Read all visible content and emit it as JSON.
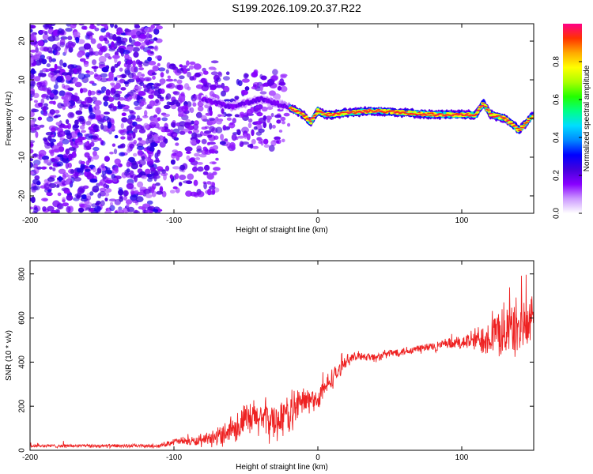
{
  "title": "S199.2026.109.20.37.R22",
  "colors": {
    "snr_line": "#ee2222",
    "colormap": [
      "#ffffff",
      "#cc99ff",
      "#8800ff",
      "#4400dd",
      "#0000ff",
      "#0088ff",
      "#00ddff",
      "#00ff88",
      "#22ff00",
      "#aaff00",
      "#ffff00",
      "#ffaa00",
      "#ff3300",
      "#ff0088"
    ]
  },
  "chart_data": [
    {
      "type": "heatmap",
      "title": "",
      "xlabel": "Height of straight line (km)",
      "ylabel": "Frequency (Hz)",
      "xlim": [
        -200,
        150
      ],
      "ylim": [
        -24.5,
        24.5
      ],
      "xticks": [
        -200,
        -100,
        0,
        100
      ],
      "xtick_labels": [
        "-200",
        "-100",
        "0",
        "100"
      ],
      "yticks": [
        -20,
        -10,
        0,
        10,
        20
      ],
      "ytick_labels": [
        "-20",
        "-10",
        "0",
        "10",
        "20"
      ],
      "colorbar": {
        "label": "Normalized spectral amplitude",
        "range": [
          0,
          1
        ],
        "ticks": [
          0.0,
          0.2,
          0.4,
          0.6,
          0.8
        ],
        "tick_labels": [
          "0.0",
          "0.2",
          "0.4",
          "0.6",
          "0.8"
        ]
      },
      "ridge": {
        "x": [
          -80,
          -60,
          -40,
          -30,
          -20,
          -10,
          -5,
          0,
          5,
          10,
          20,
          40,
          60,
          80,
          100,
          110,
          115,
          120,
          130,
          140,
          150
        ],
        "y": [
          5,
          3,
          5,
          4,
          3,
          1,
          -1,
          2,
          1,
          1,
          1.5,
          2,
          1.5,
          1,
          1,
          1,
          4,
          1,
          0,
          -3,
          1
        ]
      },
      "noise_regions": [
        {
          "x": [
            -200,
            -110
          ],
          "y": [
            -24.5,
            24.5
          ],
          "level": 0.4
        },
        {
          "x": [
            -110,
            -70
          ],
          "y": [
            -20,
            15
          ],
          "level": 0.3
        },
        {
          "x": [
            -70,
            -20
          ],
          "y": [
            -8,
            12
          ],
          "level": 0.25
        }
      ]
    },
    {
      "type": "line",
      "title": "",
      "xlabel": "Height of straight line (km)",
      "ylabel": "SNR (10 * v/v)",
      "xlim": [
        -200,
        150
      ],
      "ylim": [
        0,
        860
      ],
      "xticks": [
        -200,
        -100,
        0,
        100
      ],
      "xtick_labels": [
        "-200",
        "-100",
        "0",
        "100"
      ],
      "yticks": [
        0,
        200,
        400,
        600,
        800
      ],
      "ytick_labels": [
        "0",
        "200",
        "400",
        "600",
        "800"
      ],
      "series": [
        {
          "name": "SNR",
          "x": [
            -200,
            -150,
            -110,
            -100,
            -80,
            -70,
            -60,
            -50,
            -40,
            -30,
            -20,
            -15,
            -10,
            -5,
            0,
            5,
            10,
            15,
            20,
            30,
            40,
            50,
            60,
            70,
            80,
            90,
            100,
            110,
            120,
            130,
            140,
            150
          ],
          "y": [
            20,
            20,
            20,
            40,
            40,
            60,
            100,
            130,
            150,
            130,
            170,
            200,
            220,
            230,
            230,
            280,
            330,
            360,
            410,
            430,
            420,
            440,
            450,
            460,
            470,
            480,
            490,
            500,
            520,
            540,
            560,
            570
          ],
          "noise": [
            10,
            10,
            10,
            20,
            30,
            50,
            80,
            100,
            110,
            110,
            110,
            100,
            90,
            70,
            60,
            60,
            60,
            40,
            30,
            25,
            25,
            25,
            25,
            30,
            30,
            30,
            40,
            70,
            110,
            150,
            160,
            140
          ]
        }
      ]
    }
  ]
}
